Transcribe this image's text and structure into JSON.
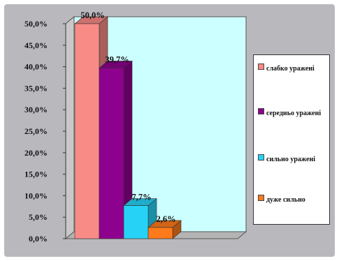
{
  "chart_data": {
    "type": "bar",
    "categories": [
      "слабко уражені",
      "середньо уражені",
      "сильно уражені",
      "дуже сильно"
    ],
    "values": [
      50.0,
      39.7,
      7.7,
      2.6
    ],
    "value_labels": [
      "50,0%",
      "39,7%",
      "7,7%",
      "2,6%"
    ],
    "colors": [
      "#f98b86",
      "#8e008e",
      "#26d3f7",
      "#ff7a1a"
    ],
    "ylim": [
      0,
      50
    ],
    "yticks": [
      0,
      5,
      10,
      15,
      20,
      25,
      30,
      35,
      40,
      45,
      50
    ],
    "ytick_labels": [
      "0,0%",
      "5,0%",
      "10,0%",
      "15,0%",
      "20,0%",
      "25,0%",
      "30,0%",
      "35,0%",
      "40,0%",
      "45,0%",
      "50,0%"
    ],
    "title": "",
    "xlabel": "",
    "ylabel": "",
    "grid": false,
    "legend_position": "right",
    "three_d": true,
    "plot_background": "#ccffff"
  },
  "legend": {
    "items": [
      {
        "label": "слабко уражені",
        "color": "#f98b86"
      },
      {
        "label": "середньо уражені",
        "color": "#8e008e"
      },
      {
        "label": "сильно уражені",
        "color": "#26d3f7"
      },
      {
        "label": "дуже сильно",
        "color": "#ff7a1a"
      }
    ]
  }
}
